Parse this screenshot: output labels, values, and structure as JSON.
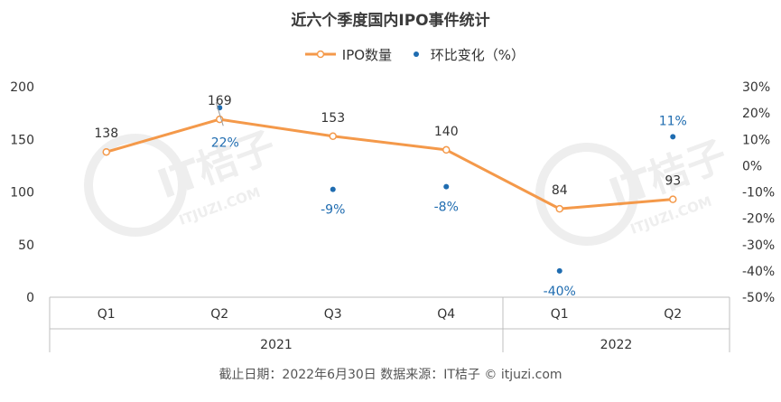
{
  "title": "近六个季度国内IPO事件统计",
  "source": "截止日期：2022年6月30日  数据来源：IT桔子 © itjuzi.com",
  "watermark": {
    "brand": "IT桔子",
    "domain": "ITJUZI.COM"
  },
  "colors": {
    "line": "#F4994A",
    "dots": "#1F6CB0",
    "axis": "#BFBFBF",
    "text": "#333333",
    "watermark": "#EEEEEE"
  },
  "chart_data": {
    "type": "line",
    "categories": [
      "Q1",
      "Q2",
      "Q3",
      "Q4",
      "Q1",
      "Q2"
    ],
    "groups": [
      {
        "label": "2021",
        "span": [
          0,
          3
        ]
      },
      {
        "label": "2022",
        "span": [
          4,
          5
        ]
      }
    ],
    "series": [
      {
        "name": "IPO数量",
        "type": "line",
        "axis": "left",
        "values": [
          138,
          169,
          153,
          140,
          84,
          93
        ],
        "labels": [
          "138",
          "169",
          "153",
          "140",
          "84",
          "93"
        ]
      },
      {
        "name": "环比变化（%）",
        "type": "scatter",
        "axis": "right",
        "values": [
          null,
          22,
          -9,
          -8,
          -40,
          11
        ],
        "labels": [
          "",
          "22%",
          "-9%",
          "-8%",
          "-40%",
          "11%"
        ]
      }
    ],
    "y_left": {
      "min": 0,
      "max": 200,
      "ticks": [
        0,
        50,
        100,
        150,
        200
      ],
      "tick_labels": [
        "0",
        "50",
        "100",
        "150",
        "200"
      ]
    },
    "y_right": {
      "min": -50,
      "max": 30,
      "ticks": [
        -50,
        -40,
        -30,
        -20,
        -10,
        0,
        10,
        20,
        30
      ],
      "tick_labels": [
        "-50%",
        "-40%",
        "-30%",
        "-20%",
        "-10%",
        "0%",
        "10%",
        "20%",
        "30%"
      ]
    },
    "grid": false,
    "legend_position": "top-center"
  }
}
